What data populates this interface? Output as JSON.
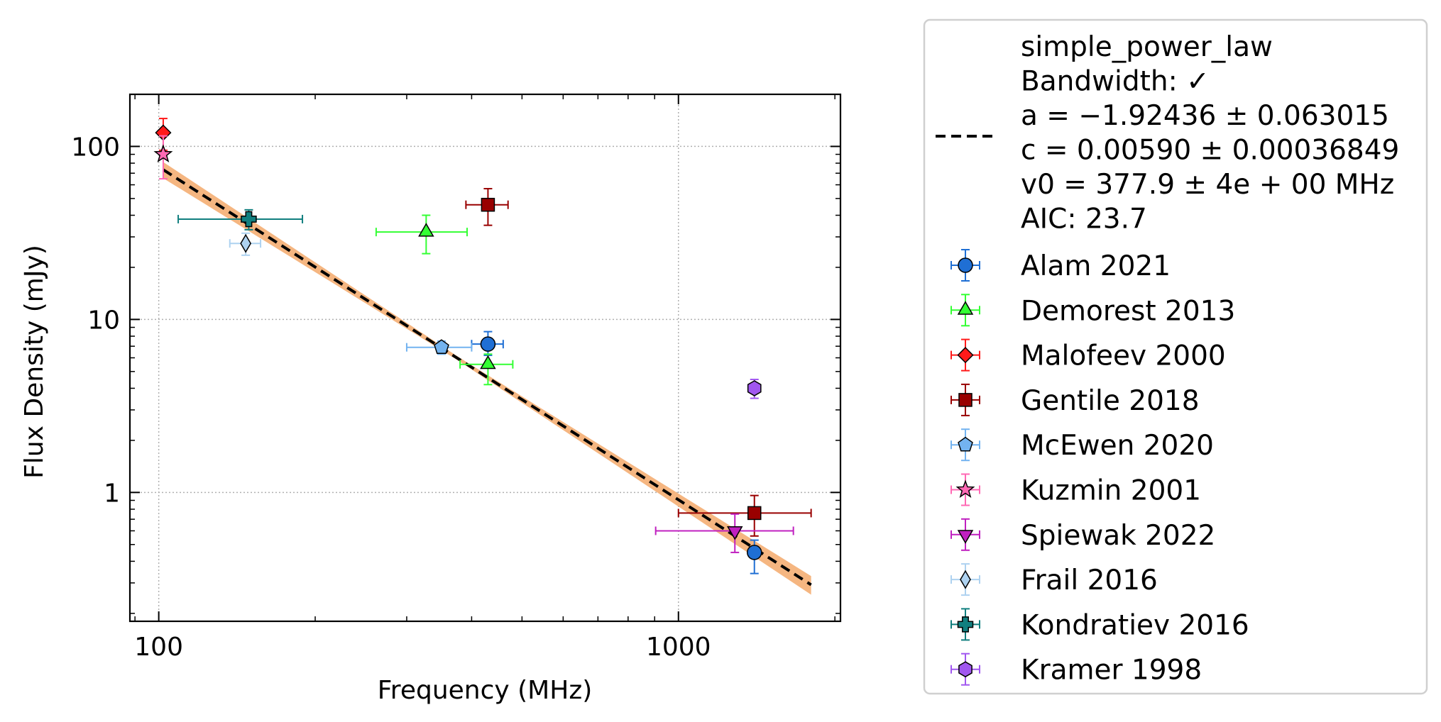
{
  "chart_data": {
    "type": "scatter",
    "xlabel": "Frequency (MHz)",
    "ylabel": "Flux Density (mJy)",
    "x_scale": "log",
    "y_scale": "log",
    "xlim": [
      88,
      2050
    ],
    "ylim": [
      0.18,
      200
    ],
    "x_ticks": [
      {
        "value": 100,
        "label": "100"
      },
      {
        "value": 1000,
        "label": "1000"
      }
    ],
    "y_ticks": [
      {
        "value": 1,
        "label": "1"
      },
      {
        "value": 10,
        "label": "10"
      },
      {
        "value": 100,
        "label": "100"
      }
    ],
    "grid": true,
    "legend_position": "outside-right",
    "fit": {
      "model": "simple_power_law",
      "lines": [
        "simple_power_law",
        "Bandwidth: ✓",
        "a = −1.92436 ± 0.063015",
        "c = 0.00590 ± 0.00036849",
        "v0 = 377.9 ± 4e + 00 MHz",
        "AIC: 23.7"
      ],
      "a": -1.92436,
      "c": 0.0059,
      "v0": 377.9,
      "x_range": [
        102,
        1800
      ],
      "line_color": "#000000",
      "band_color": "#f4b27a"
    },
    "series": [
      {
        "name": "Alam 2021",
        "color": "#1f6fd4",
        "marker": "circle",
        "points": [
          {
            "x": 430,
            "y": 7.2,
            "xerr": [
              30,
              30
            ],
            "yerr": [
              1.0,
              1.3
            ]
          },
          {
            "x": 1400,
            "y": 0.45,
            "xerr": [
              0,
              0
            ],
            "yerr": [
              0.11,
              0.08
            ]
          }
        ]
      },
      {
        "name": "Demorest 2013",
        "color": "#33ff33",
        "marker": "triangle-up",
        "points": [
          {
            "x": 327,
            "y": 32,
            "xerr": [
              65,
              65
            ],
            "yerr": [
              8,
              8
            ]
          },
          {
            "x": 430,
            "y": 5.5,
            "xerr": [
              50,
              50
            ],
            "yerr": [
              1.3,
              0.8
            ]
          }
        ]
      },
      {
        "name": "Malofeev 2000",
        "color": "#ff1a1a",
        "marker": "diamond",
        "points": [
          {
            "x": 102,
            "y": 120,
            "xerr": [
              0,
              0
            ],
            "yerr": [
              25,
              25
            ]
          }
        ]
      },
      {
        "name": "Gentile 2018",
        "color": "#990000",
        "marker": "square",
        "points": [
          {
            "x": 430,
            "y": 46,
            "xerr": [
              40,
              40
            ],
            "yerr": [
              11,
              11
            ]
          },
          {
            "x": 1400,
            "y": 0.76,
            "xerr": [
              400,
              400
            ],
            "yerr": [
              0.2,
              0.2
            ]
          }
        ]
      },
      {
        "name": "McEwen 2020",
        "color": "#73b3f0",
        "marker": "pentagon",
        "points": [
          {
            "x": 350,
            "y": 6.9,
            "xerr": [
              50,
              50
            ],
            "yerr": [
              0.6,
              0.6
            ]
          }
        ]
      },
      {
        "name": "Kuzmin 2001",
        "color": "#ff69b4",
        "marker": "star",
        "points": [
          {
            "x": 102,
            "y": 90,
            "xerr": [
              0,
              0
            ],
            "yerr": [
              25,
              25
            ]
          }
        ]
      },
      {
        "name": "Spiewak 2022",
        "color": "#c020c0",
        "marker": "triangle-down",
        "points": [
          {
            "x": 1284,
            "y": 0.6,
            "xerr": [
              380,
              380
            ],
            "yerr": [
              0.15,
              0.15
            ]
          }
        ]
      },
      {
        "name": "Frail 2016",
        "color": "#aed2f0",
        "marker": "thin-diamond",
        "points": [
          {
            "x": 147,
            "y": 27.5,
            "xerr": [
              10,
              10
            ],
            "yerr": [
              4,
              4
            ]
          }
        ]
      },
      {
        "name": "Kondratiev 2016",
        "color": "#117f7f",
        "marker": "plus",
        "points": [
          {
            "x": 149,
            "y": 38,
            "xerr": [
              40,
              40
            ],
            "yerr": [
              5,
              5
            ]
          }
        ]
      },
      {
        "name": "Kramer 1998",
        "color": "#a157f0",
        "marker": "hexagon",
        "points": [
          {
            "x": 1400,
            "y": 4.0,
            "xerr": [
              0,
              0
            ],
            "yerr": [
              0.5,
              0.5
            ]
          }
        ]
      }
    ]
  }
}
